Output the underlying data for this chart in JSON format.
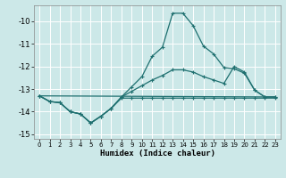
{
  "xlabel": "Humidex (Indice chaleur)",
  "background_color": "#cce8e8",
  "grid_color": "#ffffff",
  "line_color": "#1f7070",
  "xlim": [
    -0.5,
    23.5
  ],
  "ylim": [
    -15.2,
    -9.3
  ],
  "yticks": [
    -15,
    -14,
    -13,
    -12,
    -11,
    -10
  ],
  "xticks": [
    0,
    1,
    2,
    3,
    4,
    5,
    6,
    7,
    8,
    9,
    10,
    11,
    12,
    13,
    14,
    15,
    16,
    17,
    18,
    19,
    20,
    21,
    22,
    23
  ],
  "curve1_x": [
    0,
    1,
    2,
    3,
    4,
    5,
    6,
    7,
    8,
    9,
    10,
    11,
    12,
    13,
    14,
    15,
    16,
    17,
    18,
    19,
    20,
    21,
    22,
    23
  ],
  "curve1_y": [
    -13.3,
    -13.55,
    -13.6,
    -14.0,
    -14.1,
    -14.5,
    -14.2,
    -13.85,
    -13.35,
    -12.9,
    -12.45,
    -11.55,
    -11.15,
    -9.65,
    -9.65,
    -10.2,
    -11.1,
    -11.45,
    -12.05,
    -12.1,
    -12.3,
    -13.05,
    -13.35,
    -13.35
  ],
  "curve2_x": [
    0,
    1,
    2,
    3,
    4,
    5,
    6,
    7,
    8,
    9,
    10,
    11,
    12,
    13,
    14,
    15,
    16,
    17,
    18,
    19,
    20,
    21,
    22,
    23
  ],
  "curve2_y": [
    -13.3,
    -13.55,
    -13.6,
    -14.0,
    -14.1,
    -14.5,
    -14.2,
    -13.85,
    -13.35,
    -13.1,
    -12.85,
    -12.6,
    -12.4,
    -12.15,
    -12.15,
    -12.25,
    -12.45,
    -12.6,
    -12.75,
    -12.0,
    -12.25,
    -13.05,
    -13.35,
    -13.35
  ],
  "curve3_x": [
    0,
    23
  ],
  "curve3_y": [
    -13.3,
    -13.35
  ],
  "curve4_x": [
    0,
    1,
    2,
    3,
    4,
    5,
    6,
    7,
    8,
    9,
    10,
    11,
    12,
    13,
    14,
    15,
    16,
    17,
    18,
    19,
    20,
    21,
    22,
    23
  ],
  "curve4_y": [
    -13.3,
    -13.55,
    -13.6,
    -14.0,
    -14.1,
    -14.5,
    -14.2,
    -13.85,
    -13.4,
    -13.4,
    -13.4,
    -13.4,
    -13.4,
    -13.4,
    -13.4,
    -13.4,
    -13.4,
    -13.4,
    -13.4,
    -13.4,
    -13.4,
    -13.4,
    -13.4,
    -13.4
  ]
}
